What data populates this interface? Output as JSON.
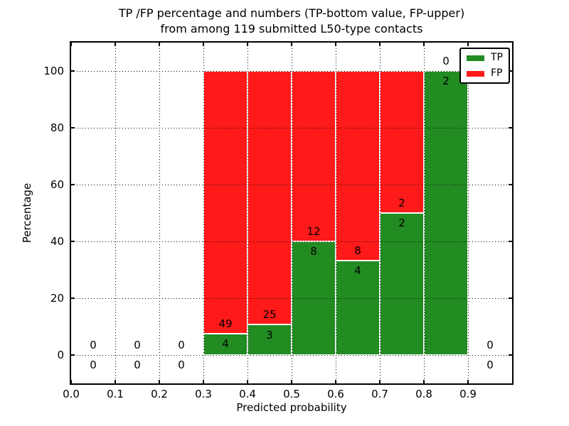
{
  "figure": {
    "title_line1": "TP /FP percentage and numbers (TP-bottom value, FP-upper)",
    "title_line2": "from among 119 submitted L50-type contacts"
  },
  "chart_data": {
    "type": "bar",
    "stacked": true,
    "normalized": "each bar scaled to 100%",
    "title": "TP /FP percentage and numbers (TP-bottom value, FP-upper)\nfrom among 119 submitted L50-type contacts",
    "xlabel": "Predicted probability",
    "ylabel": "Percentage",
    "xlim": [
      0,
      1.0
    ],
    "ylim": [
      -10,
      110
    ],
    "x_tick_values": [
      0.0,
      0.1,
      0.2,
      0.3,
      0.4,
      0.5,
      0.6,
      0.7,
      0.8,
      0.9
    ],
    "x_tick_labels": [
      "0.0",
      "0.1",
      "0.2",
      "0.3",
      "0.4",
      "0.5",
      "0.6",
      "0.7",
      "0.8",
      "0.9"
    ],
    "y_tick_values": [
      0,
      20,
      40,
      60,
      80,
      100
    ],
    "y_tick_labels": [
      "0",
      "20",
      "40",
      "60",
      "80",
      "100"
    ],
    "grid": true,
    "grid_style": "dotted",
    "total_contacts": 119,
    "bin_width": 0.1,
    "bins": [
      {
        "range": [
          0.0,
          0.1
        ],
        "tp": 0,
        "fp": 0
      },
      {
        "range": [
          0.1,
          0.2
        ],
        "tp": 0,
        "fp": 0
      },
      {
        "range": [
          0.2,
          0.3
        ],
        "tp": 0,
        "fp": 0
      },
      {
        "range": [
          0.3,
          0.4
        ],
        "tp": 4,
        "fp": 49
      },
      {
        "range": [
          0.4,
          0.5
        ],
        "tp": 3,
        "fp": 25
      },
      {
        "range": [
          0.5,
          0.6
        ],
        "tp": 8,
        "fp": 12
      },
      {
        "range": [
          0.6,
          0.7
        ],
        "tp": 4,
        "fp": 8
      },
      {
        "range": [
          0.7,
          0.8
        ],
        "tp": 2,
        "fp": 2
      },
      {
        "range": [
          0.8,
          0.9
        ],
        "tp": 2,
        "fp": 0
      },
      {
        "range": [
          0.9,
          1.0
        ],
        "tp": 0,
        "fp": 0
      }
    ],
    "legend": {
      "position": "upper right",
      "entries": [
        {
          "label": "TP",
          "color": "#228b22"
        },
        {
          "label": "FP",
          "color": "#ff1a1a"
        }
      ]
    },
    "colors": {
      "tp": "#228b22",
      "fp": "#ff1a1a",
      "grid": "#000000",
      "text": "#000000",
      "background": "#ffffff"
    }
  }
}
